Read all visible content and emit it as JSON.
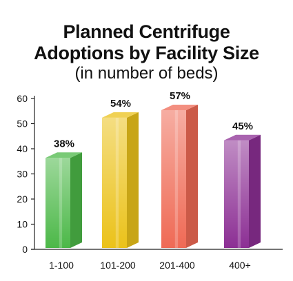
{
  "title_line1": "Planned Centrifuge",
  "title_line2": "Adoptions by Facility Size",
  "subtitle": "(in number of beds)",
  "chart_data": {
    "type": "bar",
    "title": "Planned Centrifuge Adoptions by Facility Size",
    "subtitle": "(in number of beds)",
    "categories": [
      "1-100",
      "101-200",
      "201-400",
      "400+"
    ],
    "values": [
      38,
      54,
      57,
      45
    ],
    "data_labels": [
      "38%",
      "54%",
      "57%",
      "45%"
    ],
    "colors": [
      "#4cb848",
      "#ebc21a",
      "#ef6a55",
      "#8c2f94"
    ],
    "ylim": [
      0,
      60
    ],
    "yticks": [
      0,
      10,
      20,
      30,
      40,
      50,
      60
    ],
    "xlabel": "",
    "ylabel": "",
    "grid": false,
    "legend": "none",
    "style": "3d"
  }
}
